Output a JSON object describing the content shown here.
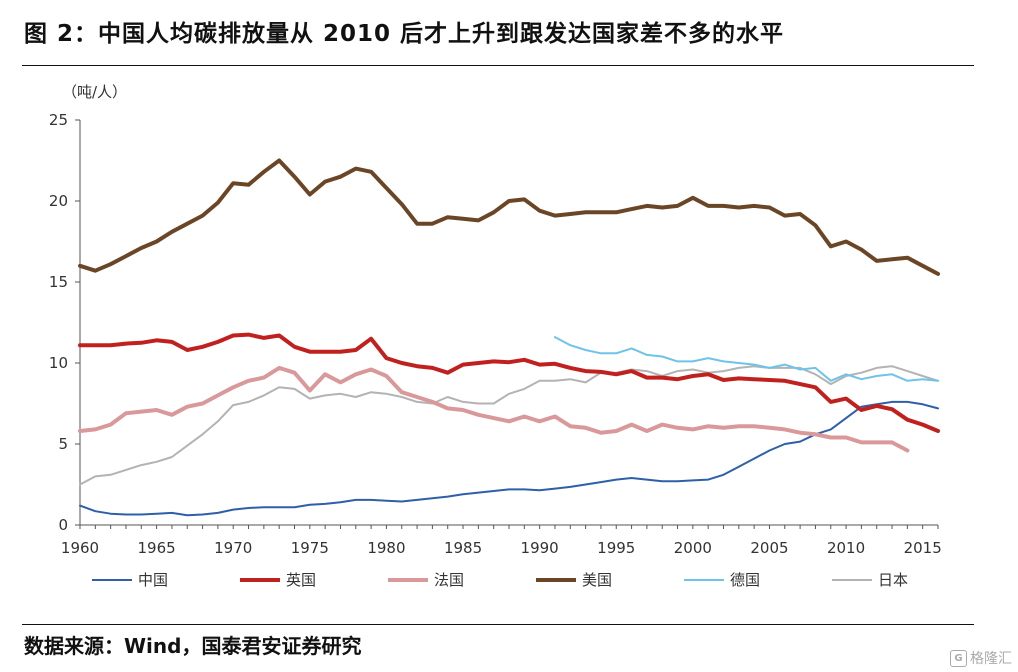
{
  "figure": {
    "title": "图 2：中国人均碳排放量从 2010 后才上升到跟发达国家差不多的水平",
    "source": "数据来源：Wind，国泰君安证券研究",
    "watermark": "格隆汇"
  },
  "chart_data": {
    "type": "line",
    "ylabel": "（吨/人）",
    "xlim": [
      1960,
      2016
    ],
    "ylim": [
      0,
      25
    ],
    "x_ticks": [
      1960,
      1965,
      1970,
      1975,
      1980,
      1985,
      1990,
      1995,
      2000,
      2005,
      2010,
      2015
    ],
    "y_ticks": [
      0,
      5,
      10,
      15,
      20,
      25
    ],
    "grid": false,
    "legend_position": "bottom",
    "series": [
      {
        "name": "中国",
        "color": "#2e5fa8",
        "width": 2,
        "x": [
          1960,
          1961,
          1962,
          1963,
          1964,
          1965,
          1966,
          1967,
          1968,
          1969,
          1970,
          1971,
          1972,
          1973,
          1974,
          1975,
          1976,
          1977,
          1978,
          1979,
          1980,
          1981,
          1982,
          1983,
          1984,
          1985,
          1986,
          1987,
          1988,
          1989,
          1990,
          1991,
          1992,
          1993,
          1994,
          1995,
          1996,
          1997,
          1998,
          1999,
          2000,
          2001,
          2002,
          2003,
          2004,
          2005,
          2006,
          2007,
          2008,
          2009,
          2010,
          2011,
          2012,
          2013,
          2014,
          2015,
          2016
        ],
        "y": [
          1.2,
          0.85,
          0.7,
          0.65,
          0.65,
          0.7,
          0.75,
          0.6,
          0.65,
          0.75,
          0.95,
          1.05,
          1.1,
          1.1,
          1.1,
          1.25,
          1.3,
          1.4,
          1.55,
          1.55,
          1.5,
          1.45,
          1.55,
          1.65,
          1.75,
          1.9,
          2.0,
          2.1,
          2.2,
          2.2,
          2.15,
          2.25,
          2.35,
          2.5,
          2.65,
          2.8,
          2.9,
          2.8,
          2.7,
          2.7,
          2.75,
          2.8,
          3.1,
          3.6,
          4.1,
          4.6,
          5.0,
          5.15,
          5.6,
          5.9,
          6.6,
          7.3,
          7.45,
          7.6,
          7.6,
          7.45,
          7.2
        ]
      },
      {
        "name": "英国",
        "color": "#c0211f",
        "width": 4,
        "x": [
          1960,
          1961,
          1962,
          1963,
          1964,
          1965,
          1966,
          1967,
          1968,
          1969,
          1970,
          1971,
          1972,
          1973,
          1974,
          1975,
          1976,
          1977,
          1978,
          1979,
          1980,
          1981,
          1982,
          1983,
          1984,
          1985,
          1986,
          1987,
          1988,
          1989,
          1990,
          1991,
          1992,
          1993,
          1994,
          1995,
          1996,
          1997,
          1998,
          1999,
          2000,
          2001,
          2002,
          2003,
          2004,
          2005,
          2006,
          2007,
          2008,
          2009,
          2010,
          2011,
          2012,
          2013,
          2014,
          2015,
          2016
        ],
        "y": [
          11.1,
          11.1,
          11.1,
          11.2,
          11.25,
          11.4,
          11.3,
          10.8,
          11.0,
          11.3,
          11.7,
          11.75,
          11.55,
          11.7,
          11.0,
          10.7,
          10.7,
          10.7,
          10.8,
          11.5,
          10.3,
          10.0,
          9.8,
          9.7,
          9.4,
          9.9,
          10.0,
          10.1,
          10.05,
          10.2,
          9.9,
          9.95,
          9.7,
          9.5,
          9.45,
          9.3,
          9.5,
          9.1,
          9.1,
          9.0,
          9.2,
          9.3,
          8.95,
          9.05,
          9.0,
          8.95,
          8.9,
          8.7,
          8.5,
          7.6,
          7.8,
          7.1,
          7.35,
          7.15,
          6.5,
          6.2,
          5.8
        ]
      },
      {
        "name": "法国",
        "color": "#d9999b",
        "width": 4,
        "x": [
          1960,
          1961,
          1962,
          1963,
          1964,
          1965,
          1966,
          1967,
          1968,
          1969,
          1970,
          1971,
          1972,
          1973,
          1974,
          1975,
          1976,
          1977,
          1978,
          1979,
          1980,
          1981,
          1982,
          1983,
          1984,
          1985,
          1986,
          1987,
          1988,
          1989,
          1990,
          1991,
          1992,
          1993,
          1994,
          1995,
          1996,
          1997,
          1998,
          1999,
          2000,
          2001,
          2002,
          2003,
          2004,
          2005,
          2006,
          2007,
          2008,
          2009,
          2010,
          2011,
          2012,
          2013,
          2014
        ],
        "y": [
          5.8,
          5.9,
          6.2,
          6.9,
          7.0,
          7.1,
          6.8,
          7.3,
          7.5,
          8.0,
          8.5,
          8.9,
          9.1,
          9.7,
          9.4,
          8.3,
          9.3,
          8.8,
          9.3,
          9.6,
          9.2,
          8.2,
          7.9,
          7.6,
          7.2,
          7.1,
          6.8,
          6.6,
          6.4,
          6.7,
          6.4,
          6.7,
          6.1,
          6.0,
          5.7,
          5.8,
          6.2,
          5.8,
          6.2,
          6.0,
          5.9,
          6.1,
          6.0,
          6.1,
          6.1,
          6.0,
          5.9,
          5.7,
          5.6,
          5.4,
          5.4,
          5.1,
          5.1,
          5.1,
          4.6
        ]
      },
      {
        "name": "美国",
        "color": "#6b4626",
        "width": 4,
        "x": [
          1960,
          1961,
          1962,
          1963,
          1964,
          1965,
          1966,
          1967,
          1968,
          1969,
          1970,
          1971,
          1972,
          1973,
          1974,
          1975,
          1976,
          1977,
          1978,
          1979,
          1980,
          1981,
          1982,
          1983,
          1984,
          1985,
          1986,
          1987,
          1988,
          1989,
          1990,
          1991,
          1992,
          1993,
          1994,
          1995,
          1996,
          1997,
          1998,
          1999,
          2000,
          2001,
          2002,
          2003,
          2004,
          2005,
          2006,
          2007,
          2008,
          2009,
          2010,
          2011,
          2012,
          2013,
          2014,
          2015,
          2016
        ],
        "y": [
          16.0,
          15.7,
          16.1,
          16.6,
          17.1,
          17.5,
          18.1,
          18.6,
          19.1,
          19.9,
          21.1,
          21.0,
          21.8,
          22.5,
          21.5,
          20.4,
          21.2,
          21.5,
          22.0,
          21.8,
          20.8,
          19.8,
          18.6,
          18.6,
          19.0,
          18.9,
          18.8,
          19.3,
          20.0,
          20.1,
          19.4,
          19.1,
          19.2,
          19.3,
          19.3,
          19.3,
          19.5,
          19.7,
          19.6,
          19.7,
          20.2,
          19.7,
          19.7,
          19.6,
          19.7,
          19.6,
          19.1,
          19.2,
          18.5,
          17.2,
          17.5,
          17.0,
          16.3,
          16.4,
          16.5,
          16.0,
          15.5
        ]
      },
      {
        "name": "德国",
        "color": "#6fc3e8",
        "width": 2,
        "x": [
          1991,
          1992,
          1993,
          1994,
          1995,
          1996,
          1997,
          1998,
          1999,
          2000,
          2001,
          2002,
          2003,
          2004,
          2005,
          2006,
          2007,
          2008,
          2009,
          2010,
          2011,
          2012,
          2013,
          2014,
          2015,
          2016
        ],
        "y": [
          11.6,
          11.1,
          10.8,
          10.6,
          10.6,
          10.9,
          10.5,
          10.4,
          10.1,
          10.1,
          10.3,
          10.1,
          10.0,
          9.9,
          9.7,
          9.9,
          9.6,
          9.7,
          8.9,
          9.3,
          9.0,
          9.2,
          9.3,
          8.9,
          9.0,
          8.9
        ]
      },
      {
        "name": "日本",
        "color": "#b3b3b3",
        "width": 2,
        "x": [
          1960,
          1961,
          1962,
          1963,
          1964,
          1965,
          1966,
          1967,
          1968,
          1969,
          1970,
          1971,
          1972,
          1973,
          1974,
          1975,
          1976,
          1977,
          1978,
          1979,
          1980,
          1981,
          1982,
          1983,
          1984,
          1985,
          1986,
          1987,
          1988,
          1989,
          1990,
          1991,
          1992,
          1993,
          1994,
          1995,
          1996,
          1997,
          1998,
          1999,
          2000,
          2001,
          2002,
          2003,
          2004,
          2005,
          2006,
          2007,
          2008,
          2009,
          2010,
          2011,
          2012,
          2013,
          2014,
          2015,
          2016
        ],
        "y": [
          2.5,
          3.0,
          3.1,
          3.4,
          3.7,
          3.9,
          4.2,
          4.9,
          5.6,
          6.4,
          7.4,
          7.6,
          8.0,
          8.5,
          8.4,
          7.8,
          8.0,
          8.1,
          7.9,
          8.2,
          8.1,
          7.9,
          7.6,
          7.5,
          7.9,
          7.6,
          7.5,
          7.5,
          8.1,
          8.4,
          8.9,
          8.9,
          9.0,
          8.8,
          9.4,
          9.4,
          9.6,
          9.5,
          9.2,
          9.5,
          9.6,
          9.4,
          9.5,
          9.7,
          9.8,
          9.7,
          9.7,
          9.7,
          9.3,
          8.7,
          9.2,
          9.4,
          9.7,
          9.8,
          9.5,
          9.2,
          8.9
        ]
      }
    ]
  }
}
